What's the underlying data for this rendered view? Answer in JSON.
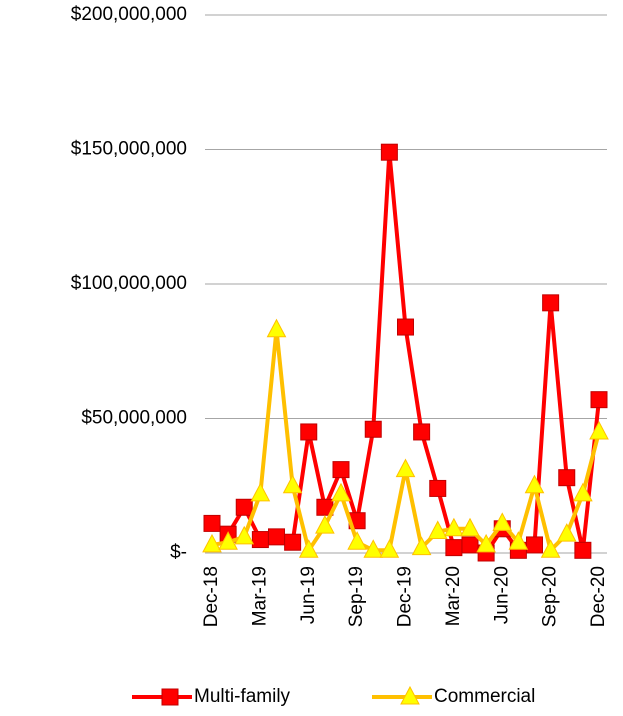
{
  "chart_data": {
    "type": "line",
    "categories": [
      "Dec-18",
      null,
      null,
      "Mar-19",
      null,
      null,
      "Jun-19",
      null,
      null,
      "Sep-19",
      null,
      null,
      "Dec-19",
      null,
      null,
      "Mar-20",
      null,
      null,
      "Jun-20",
      null,
      null,
      "Sep-20",
      null,
      null,
      "Dec-20"
    ],
    "series": [
      {
        "name": "Multi-family",
        "color": "#ff0000",
        "marker": "square",
        "values": [
          11000000,
          7000000,
          17000000,
          5000000,
          6000000,
          4000000,
          45000000,
          17000000,
          31000000,
          12000000,
          46000000,
          149000000,
          84000000,
          45000000,
          24000000,
          2000000,
          3000000,
          0,
          9000000,
          1000000,
          3000000,
          93000000,
          28000000,
          1000000,
          57000000
        ]
      },
      {
        "name": "Commercial",
        "color": "#ffc000",
        "marker": "triangle",
        "values": [
          3000000,
          4000000,
          6000000,
          22000000,
          83000000,
          25000000,
          1000000,
          10000000,
          22000000,
          4000000,
          1000000,
          1000000,
          31000000,
          2000000,
          8000000,
          9000000,
          9000000,
          3000000,
          11000000,
          4000000,
          25000000,
          1000000,
          7000000,
          22000000,
          45000000
        ]
      }
    ],
    "ylim": [
      0,
      200000000
    ],
    "yticks": [
      {
        "value": 0,
        "label": "$-"
      },
      {
        "value": 50000000,
        "label": "$50,000,000"
      },
      {
        "value": 100000000,
        "label": "$100,000,000"
      },
      {
        "value": 150000000,
        "label": "$150,000,000"
      },
      {
        "value": 200000000,
        "label": "$200,000,000"
      }
    ],
    "grid": true,
    "legend": "bottom"
  }
}
